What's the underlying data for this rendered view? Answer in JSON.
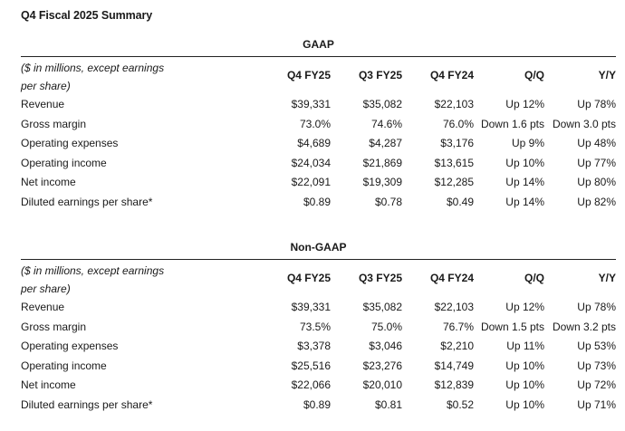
{
  "page_title": "Q4 Fiscal 2025 Summary",
  "tables": [
    {
      "title": "GAAP",
      "header": {
        "label_line1": "($ in millions, except earnings",
        "label_line2": "per share)",
        "columns": [
          "Q4 FY25",
          "Q3 FY25",
          "Q4 FY24",
          "Q/Q",
          "Y/Y"
        ]
      },
      "rows": [
        {
          "label": "Revenue",
          "values": [
            "$39,331",
            "$35,082",
            "$22,103",
            "Up 12%",
            "Up 78%"
          ]
        },
        {
          "label": "Gross margin",
          "values": [
            "73.0%",
            "74.6%",
            "76.0%",
            "Down 1.6 pts",
            "Down 3.0 pts"
          ]
        },
        {
          "label": "Operating expenses",
          "values": [
            "$4,689",
            "$4,287",
            "$3,176",
            "Up 9%",
            "Up 48%"
          ]
        },
        {
          "label": "Operating income",
          "values": [
            "$24,034",
            "$21,869",
            "$13,615",
            "Up 10%",
            "Up 77%"
          ]
        },
        {
          "label": "Net income",
          "values": [
            "$22,091",
            "$19,309",
            "$12,285",
            "Up 14%",
            "Up 80%"
          ]
        },
        {
          "label": "Diluted earnings per share*",
          "values": [
            "$0.89",
            "$0.78",
            "$0.49",
            "Up 14%",
            "Up 82%"
          ]
        }
      ]
    },
    {
      "title": "Non-GAAP",
      "header": {
        "label_line1": "($ in millions, except earnings",
        "label_line2": "per share)",
        "columns": [
          "Q4 FY25",
          "Q3 FY25",
          "Q4 FY24",
          "Q/Q",
          "Y/Y"
        ]
      },
      "rows": [
        {
          "label": "Revenue",
          "values": [
            "$39,331",
            "$35,082",
            "$22,103",
            "Up 12%",
            "Up 78%"
          ]
        },
        {
          "label": "Gross margin",
          "values": [
            "73.5%",
            "75.0%",
            "76.7%",
            "Down 1.5 pts",
            "Down 3.2 pts"
          ]
        },
        {
          "label": "Operating expenses",
          "values": [
            "$3,378",
            "$3,046",
            "$2,210",
            "Up 11%",
            "Up 53%"
          ]
        },
        {
          "label": "Operating income",
          "values": [
            "$25,516",
            "$23,276",
            "$14,749",
            "Up 10%",
            "Up 73%"
          ]
        },
        {
          "label": "Net income",
          "values": [
            "$22,066",
            "$20,010",
            "$12,839",
            "Up 10%",
            "Up 72%"
          ]
        },
        {
          "label": "Diluted earnings per share*",
          "values": [
            "$0.89",
            "$0.81",
            "$0.52",
            "Up 10%",
            "Up 71%"
          ]
        }
      ]
    }
  ]
}
